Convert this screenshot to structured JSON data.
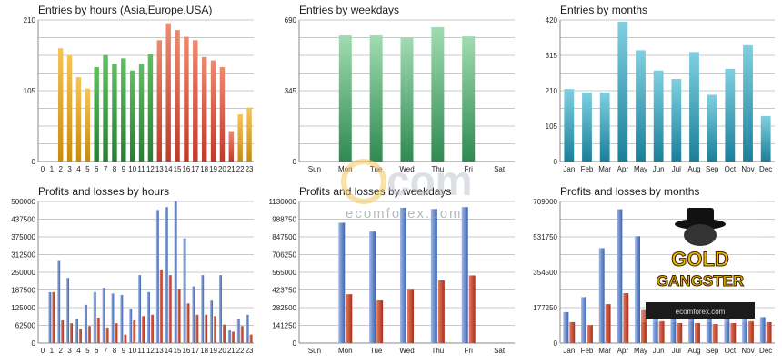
{
  "colors": {
    "grid": "#c8c8c8",
    "axis": "#888888",
    "profit": "#5b7fc7",
    "loss": "#c8462a",
    "teal": "#2a95b0",
    "green": "#3aa060"
  },
  "watermark": {
    "brand": "ecomforex.com",
    "icon": "ecom-logo-icon"
  },
  "badge": {
    "title": "GOLD",
    "subtitle": "GANGSTER",
    "site": "ecomforex.com",
    "icon": "gangster-mascot-icon"
  },
  "chart_data": [
    {
      "type": "bar",
      "title": "Entries by hours (Asia,Europe,USA)",
      "categories": [
        "0",
        "1",
        "2",
        "3",
        "4",
        "5",
        "6",
        "7",
        "8",
        "9",
        "10",
        "11",
        "12",
        "13",
        "14",
        "15",
        "16",
        "17",
        "18",
        "19",
        "20",
        "21",
        "22",
        "23"
      ],
      "values": [
        0,
        0,
        168,
        158,
        125,
        108,
        140,
        158,
        145,
        153,
        135,
        145,
        160,
        180,
        205,
        195,
        185,
        180,
        155,
        150,
        140,
        45,
        70,
        80
      ],
      "yticks": [
        "0",
        "105",
        "210"
      ],
      "ylim": [
        0,
        210
      ]
    },
    {
      "type": "bar",
      "title": "Entries by weekdays",
      "categories": [
        "Sun",
        "Mon",
        "Tue",
        "Wed",
        "Thu",
        "Fri",
        "Sat"
      ],
      "values": [
        0,
        615,
        615,
        605,
        655,
        610,
        0
      ],
      "yticks": [
        "0",
        "345",
        "690"
      ],
      "ylim": [
        0,
        690
      ]
    },
    {
      "type": "bar",
      "title": "Entries by months",
      "categories": [
        "Jan",
        "Feb",
        "Mar",
        "Apr",
        "May",
        "Jun",
        "Jul",
        "Aug",
        "Sep",
        "Oct",
        "Nov",
        "Dec"
      ],
      "values": [
        215,
        205,
        205,
        415,
        330,
        270,
        245,
        325,
        198,
        275,
        345,
        135
      ],
      "yticks": [
        "0",
        "105",
        "210",
        "315",
        "420"
      ],
      "ylim": [
        0,
        420
      ]
    },
    {
      "type": "bar",
      "title": "Profits and losses by hours",
      "categories": [
        "0",
        "1",
        "2",
        "3",
        "4",
        "5",
        "6",
        "7",
        "8",
        "9",
        "10",
        "11",
        "12",
        "13",
        "14",
        "15",
        "16",
        "17",
        "18",
        "19",
        "20",
        "21",
        "22",
        "23"
      ],
      "series": [
        {
          "values": [
            0,
            180000,
            290000,
            230000,
            85000,
            135000,
            180000,
            195000,
            175000,
            170000,
            120000,
            240000,
            180000,
            470000,
            480000,
            500000,
            370000,
            200000,
            240000,
            150000,
            240000,
            45000,
            85000,
            100000
          ]
        },
        {
          "values": [
            0,
            180000,
            80000,
            70000,
            50000,
            60000,
            90000,
            55000,
            70000,
            30000,
            80000,
            95000,
            100000,
            260000,
            240000,
            190000,
            140000,
            100000,
            100000,
            95000,
            65000,
            40000,
            60000,
            30000
          ]
        }
      ],
      "yticks": [
        "0",
        "62500",
        "125000",
        "187500",
        "250000",
        "312500",
        "375000",
        "437500",
        "500000"
      ],
      "ylim": [
        0,
        500000
      ]
    },
    {
      "type": "bar",
      "title": "Profits and losses by weekdays",
      "categories": [
        "Sun",
        "Mon",
        "Tue",
        "Wed",
        "Thu",
        "Fri",
        "Sat"
      ],
      "series": [
        {
          "values": [
            0,
            960000,
            890000,
            1080000,
            1070000,
            1085000,
            0
          ]
        },
        {
          "values": [
            0,
            390000,
            340000,
            425000,
            500000,
            540000,
            0
          ]
        }
      ],
      "yticks": [
        "0",
        "141250",
        "282500",
        "423750",
        "565000",
        "706250",
        "847500",
        "988750",
        "1130000"
      ],
      "ylim": [
        0,
        1130000
      ]
    },
    {
      "type": "bar",
      "title": "Profits and losses by months",
      "categories": [
        "Jan",
        "Feb",
        "Mar",
        "Apr",
        "May",
        "Jun",
        "Jul",
        "Aug",
        "Sep",
        "Oct",
        "Nov",
        "Dec"
      ],
      "series": [
        {
          "values": [
            155000,
            230000,
            475000,
            670000,
            535000,
            150000,
            140000,
            150000,
            130000,
            140000,
            130000,
            130000
          ]
        },
        {
          "values": [
            105000,
            90000,
            195000,
            250000,
            165000,
            110000,
            100000,
            100000,
            95000,
            100000,
            110000,
            105000
          ]
        }
      ],
      "yticks": [
        "0",
        "177250",
        "354500",
        "531750",
        "709000"
      ],
      "ylim": [
        0,
        709000
      ]
    }
  ]
}
